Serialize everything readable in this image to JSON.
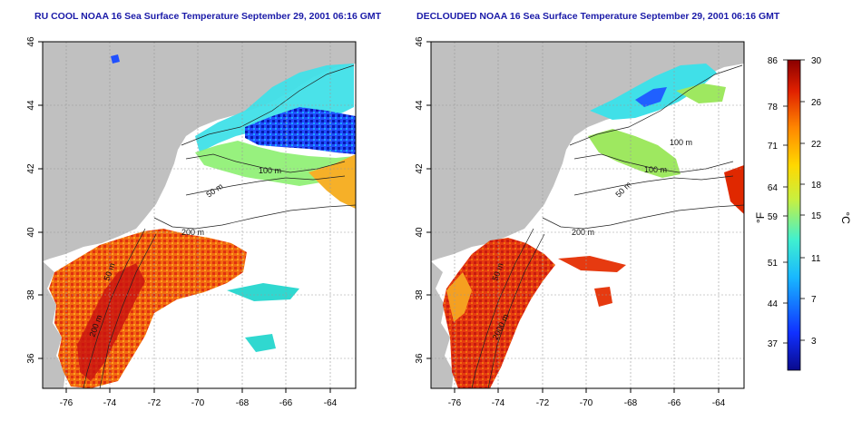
{
  "left_panel": {
    "title": "RU COOL NOAA 16 Sea Surface Temperature September 29, 2001 06:16 GMT",
    "x_ticks": [
      "-76",
      "-74",
      "-72",
      "-70",
      "-68",
      "-66",
      "-64"
    ],
    "y_ticks": [
      "46",
      "44",
      "42",
      "40",
      "38",
      "36"
    ],
    "contour_labels": [
      "100 m",
      "50 m",
      "200 m",
      "50 m",
      "200 m"
    ]
  },
  "right_panel": {
    "title": "DECLOUDED NOAA 16 Sea Surface Temperature September 29, 2001 06:16 GMT",
    "x_ticks": [
      "-76",
      "-74",
      "-72",
      "-70",
      "-68",
      "-66",
      "-64"
    ],
    "y_ticks": [
      "46",
      "44",
      "42",
      "40",
      "38",
      "36"
    ],
    "contour_labels": [
      "100 m",
      "100 m",
      "50 m",
      "200 m",
      "50 m",
      "2000 m"
    ]
  },
  "colorbar": {
    "fahrenheit_label": "°F",
    "celsius_label": "°C",
    "fahrenheit_ticks": [
      "86",
      "78",
      "71",
      "64",
      "59",
      "51",
      "44",
      "37"
    ],
    "celsius_ticks": [
      "30",
      "26",
      "22",
      "18",
      "15",
      "11",
      "7",
      "3"
    ],
    "colors": [
      "#0a0a8c",
      "#1030ff",
      "#18b8ff",
      "#40f0d0",
      "#c8f040",
      "#ffd800",
      "#ff8800",
      "#e02000",
      "#8a0000"
    ]
  }
}
